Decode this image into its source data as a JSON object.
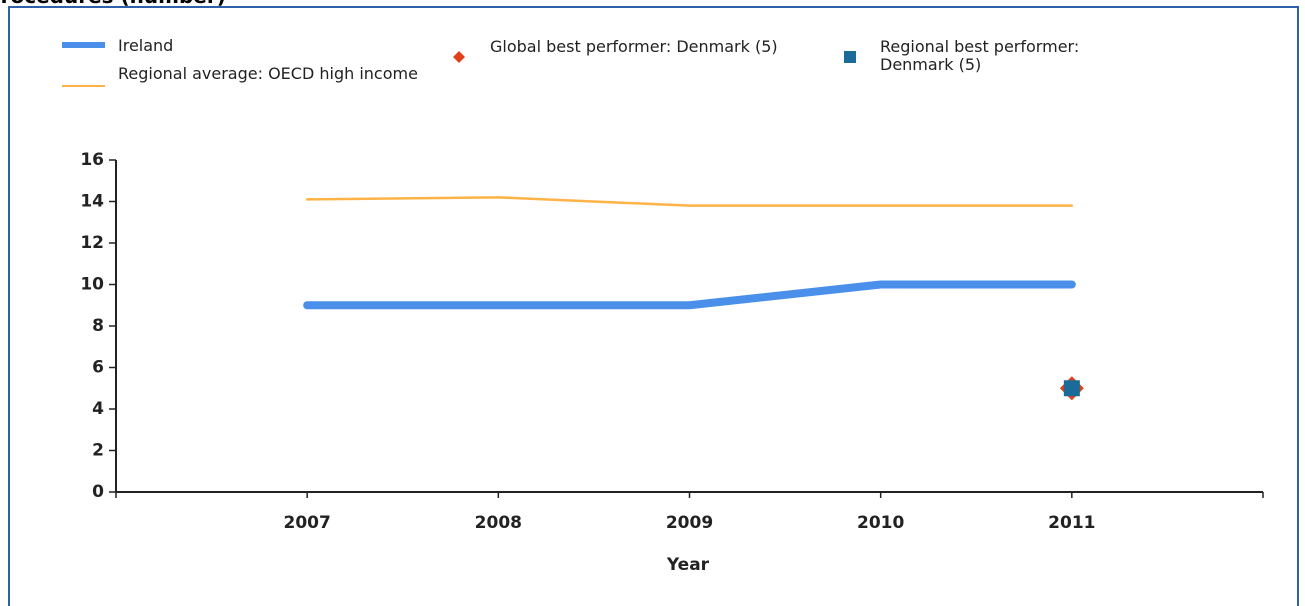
{
  "chart_data": {
    "type": "line",
    "title": "Procedures (number)",
    "x_label": "Year",
    "x": [
      2007,
      2008,
      2009,
      2010,
      2011
    ],
    "xlim": [
      2006,
      2012
    ],
    "xticks": [
      2007,
      2008,
      2009,
      2010,
      2011
    ],
    "ylim": [
      0,
      16
    ],
    "yticks": [
      0,
      2,
      4,
      6,
      8,
      10,
      12,
      14,
      16
    ],
    "series": [
      {
        "name": "Ireland",
        "color": "#4a8fea",
        "values": [
          9,
          9,
          9,
          10,
          10
        ]
      },
      {
        "name": "Regional average: OECD high income",
        "color": "#ffb347",
        "values": [
          14.1,
          14.2,
          13.8,
          13.8,
          13.8
        ]
      },
      {
        "name": "Global best performer: Denmark (5)",
        "color": "#e0401a",
        "marker": "diamond",
        "values": [
          null,
          null,
          null,
          null,
          5
        ]
      },
      {
        "name": "Regional best performer: Denmark (5)",
        "color": "#1a6a9a",
        "marker": "square",
        "values": [
          null,
          null,
          null,
          null,
          5
        ]
      }
    ]
  }
}
